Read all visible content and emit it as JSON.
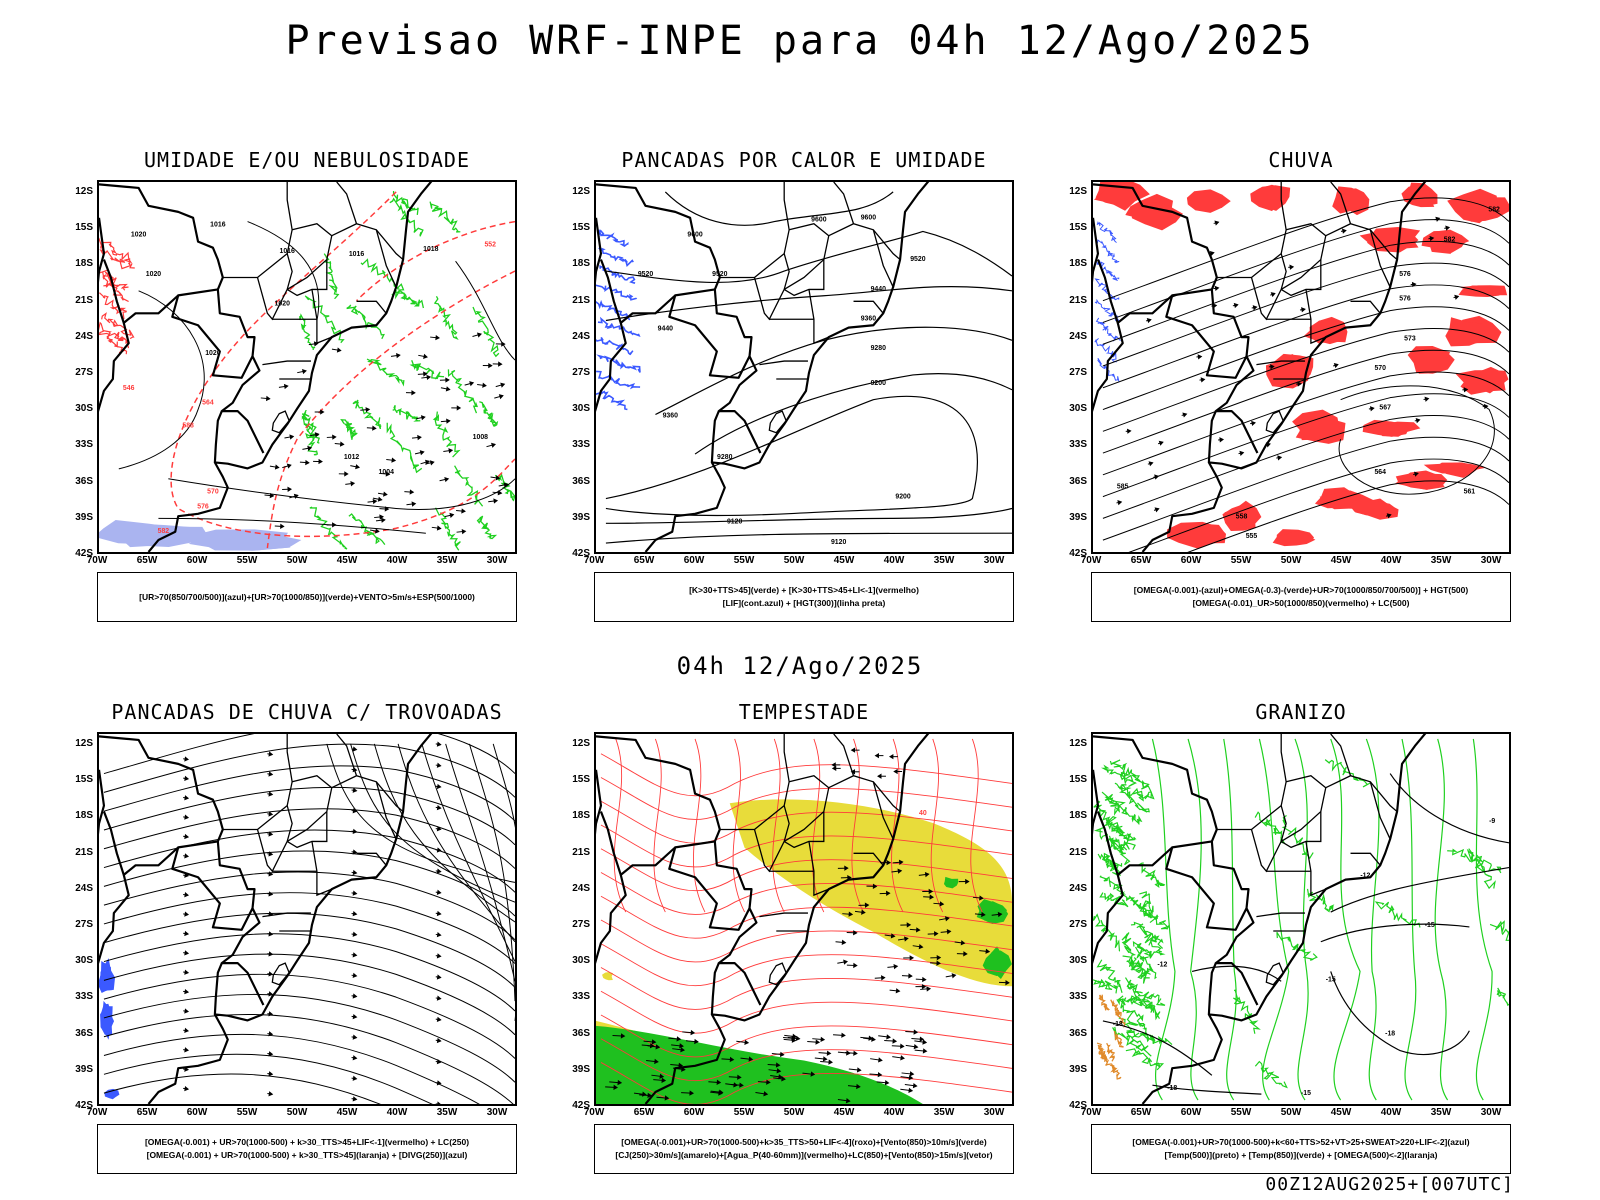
{
  "header": {
    "title": "Previsao WRF-INPE  para 04h 12/Ago/2025"
  },
  "middle_caption": "04h 12/Ago/2025",
  "footer": "00Z12AUG2025+[007UTC]",
  "axes": {
    "lat_labels": [
      "12S",
      "15S",
      "18S",
      "21S",
      "24S",
      "27S",
      "30S",
      "33S",
      "36S",
      "39S",
      "42S"
    ],
    "lon_labels": [
      "70W",
      "65W",
      "60W",
      "55W",
      "50W",
      "45W",
      "40W",
      "35W",
      "30W"
    ]
  },
  "panels": [
    {
      "title": "UMIDADE E/OU NEBULOSIDADE",
      "legend": [
        "[UR>70(850/700/500)](azul)+[UR>70(1000/850)](verde)+VENTO>5m/s+ESP(500/1000)"
      ],
      "contour_labels": [
        "1016",
        "1016",
        "1016",
        "1018",
        "1020",
        "1020",
        "1020",
        "1020",
        "1012",
        "1008",
        "1004",
        "570",
        "576",
        "582",
        "588",
        "564",
        "552",
        "546"
      ],
      "colors": {
        "blue": "#3b59ff",
        "green": "#1fd01f",
        "red": "#ff3b3b",
        "lightblue": "#aab4f0"
      }
    },
    {
      "title": "PANCADAS POR CALOR E UMIDADE",
      "legend": [
        "[K>30+TTS>45](verde) + [K>30+TTS>45+LI<-1](vermelho)",
        "[LIF](cont.azul) + [HGT(300)](linha preta)"
      ],
      "contour_labels": [
        "9600",
        "9600",
        "9600",
        "9520",
        "9520",
        "9520",
        "9440",
        "9440",
        "9360",
        "9360",
        "9280",
        "9280",
        "9200",
        "9200",
        "9120",
        "9120"
      ],
      "colors": {
        "blue": "#3b59ff"
      }
    },
    {
      "title": "CHUVA",
      "legend": [
        "[OMEGA(-0.001)-(azul)+OMEGA(-0.3)-(verde)+UR>70(1000/850/700/500)] + HGT(500)",
        "[OMEGA(-0.01)_UR>50(1000/850)(vermelho) + LC(500)"
      ],
      "contour_labels": [
        "582",
        "582",
        "576",
        "576",
        "573",
        "570",
        "567",
        "564",
        "561",
        "558",
        "555",
        "585"
      ],
      "colors": {
        "red": "#ff3b3b",
        "blue": "#3b59ff"
      }
    },
    {
      "title": "PANCADAS DE CHUVA C/ TROVOADAS",
      "legend": [
        "[OMEGA(-0.001) + UR>70(1000-500) + k>30_TTS>45+LIF<-1](vermelho) + LC(250)",
        "[OMEGA(-0.001) + UR>70(1000-500) + k>30_TTS>45](laranja) + [DIVG(250)](azul)"
      ],
      "contour_labels": [],
      "colors": {
        "blue": "#3b59ff"
      }
    },
    {
      "title": "TEMPESTADE",
      "legend": [
        "[OMEGA(-0.001)+UR>70(1000-500)+k>35_TTS>50+LIF<-4](roxo)+[Vento(850)>10m/s](verde)",
        "[CJ(250)>30m/s](amarelo)+[Agua_P(40-60mm)](vermelho)+LC(850)+[Vento(850)>15m/s](vetor)"
      ],
      "contour_labels": [
        "40"
      ],
      "colors": {
        "yellow": "#e8dc3a",
        "green": "#1fc01f",
        "red": "#ff3b3b"
      }
    },
    {
      "title": "GRANIZO",
      "legend": [
        "[OMEGA(-0.001)+UR>70(1000-500)+k<60+TTS>52+VT>25+SWEAT>220+LIF<-2](azul)",
        "[Temp(500)](preto) + [Temp(850)](verde) + [OMEGA(500)<-2](laranja)"
      ],
      "contour_labels": [
        "-9",
        "-12",
        "-12",
        "-15",
        "-15",
        "-18",
        "-18",
        "-18",
        "-15"
      ],
      "colors": {
        "green": "#1fd01f",
        "orange": "#e08a2a"
      }
    }
  ]
}
